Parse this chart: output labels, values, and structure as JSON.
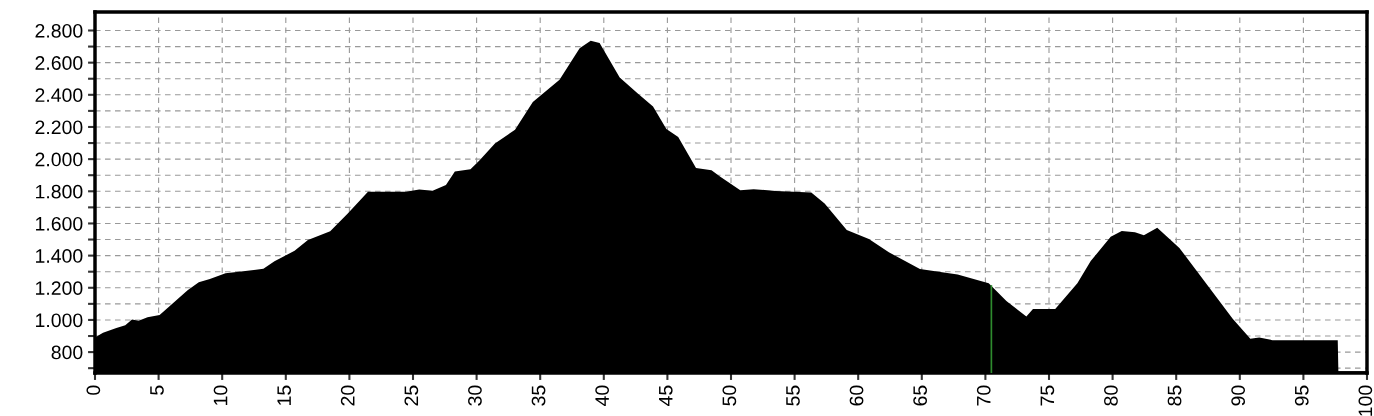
{
  "chart_data": {
    "type": "area",
    "x": [
      0,
      0.63,
      1.68,
      2.38,
      2.91,
      3.43,
      4.13,
      5.08,
      5.88,
      7.28,
      8.16,
      9.03,
      10.26,
      11.48,
      13.24,
      14.11,
      15.69,
      16.74,
      18.49,
      19.89,
      21.46,
      24.44,
      25.49,
      26.54,
      27.59,
      28.29,
      29.52,
      30.22,
      31.44,
      33.02,
      34.42,
      36.52,
      38.1,
      38.97,
      39.67,
      41.25,
      42.65,
      43.87,
      44.92,
      45.85,
      47.25,
      48.47,
      49.16,
      50.73,
      51.78,
      53.52,
      56.31,
      57.36,
      59.1,
      60.84,
      62.41,
      64.85,
      67.82,
      70.26,
      71.65,
      73.22,
      73.74,
      75.49,
      77.23,
      78.28,
      79.85,
      80.72,
      81.76,
      82.46,
      83.51,
      85.25,
      87.34,
      89.44,
      90.83,
      91.53,
      92.57,
      97.7,
      97.75,
      100
    ],
    "series": [
      {
        "color": "#000000",
        "values": [
          890,
          920,
          950,
          967,
          1003,
          995,
          1017,
          1031,
          1087,
          1184,
          1235,
          1254,
          1290,
          1301,
          1318,
          1365,
          1430,
          1497,
          1552,
          1664,
          1797,
          1797,
          1811,
          1803,
          1839,
          1923,
          1937,
          1992,
          2098,
          2182,
          2355,
          2494,
          2689,
          2736,
          2722,
          2508,
          2410,
          2327,
          2187,
          2138,
          1945,
          1931,
          1890,
          1807,
          1813,
          1802,
          1793,
          1724,
          1559,
          1504,
          1421,
          1316,
          1283,
          1228,
          1117,
          1021,
          1068,
          1068,
          1228,
          1366,
          1517,
          1553,
          1545,
          1526,
          1573,
          1448,
          1228,
          1007,
          883,
          891,
          874,
          874,
          681,
          681
        ]
      }
    ],
    "ref_lines": [
      {
        "axis": "x",
        "value": 70.47,
        "color": "#2e8b2e"
      }
    ],
    "xlim": [
      0,
      100
    ],
    "xticks": [
      0,
      5,
      10,
      15,
      20,
      25,
      30,
      35,
      40,
      45,
      50,
      55,
      60,
      65,
      70,
      75,
      80,
      85,
      90,
      95,
      100
    ],
    "ylim": [
      670,
      2915
    ],
    "yticks": [
      {
        "value": 700,
        "label": null
      },
      {
        "value": 800,
        "label": "800"
      },
      {
        "value": 900,
        "label": null
      },
      {
        "value": 1000,
        "label": "1.000"
      },
      {
        "value": 1100,
        "label": null
      },
      {
        "value": 1200,
        "label": "1.200"
      },
      {
        "value": 1300,
        "label": null
      },
      {
        "value": 1400,
        "label": "1.400"
      },
      {
        "value": 1500,
        "label": null
      },
      {
        "value": 1600,
        "label": "1.600"
      },
      {
        "value": 1700,
        "label": null
      },
      {
        "value": 1800,
        "label": "1.800"
      },
      {
        "value": 1900,
        "label": null
      },
      {
        "value": 2000,
        "label": "2.000"
      },
      {
        "value": 2100,
        "label": null
      },
      {
        "value": 2200,
        "label": "2.200"
      },
      {
        "value": 2300,
        "label": null
      },
      {
        "value": 2400,
        "label": "2.400"
      },
      {
        "value": 2500,
        "label": null
      },
      {
        "value": 2600,
        "label": "2.600"
      },
      {
        "value": 2700,
        "label": null
      },
      {
        "value": 2800,
        "label": "2.800"
      }
    ],
    "grid": true
  }
}
